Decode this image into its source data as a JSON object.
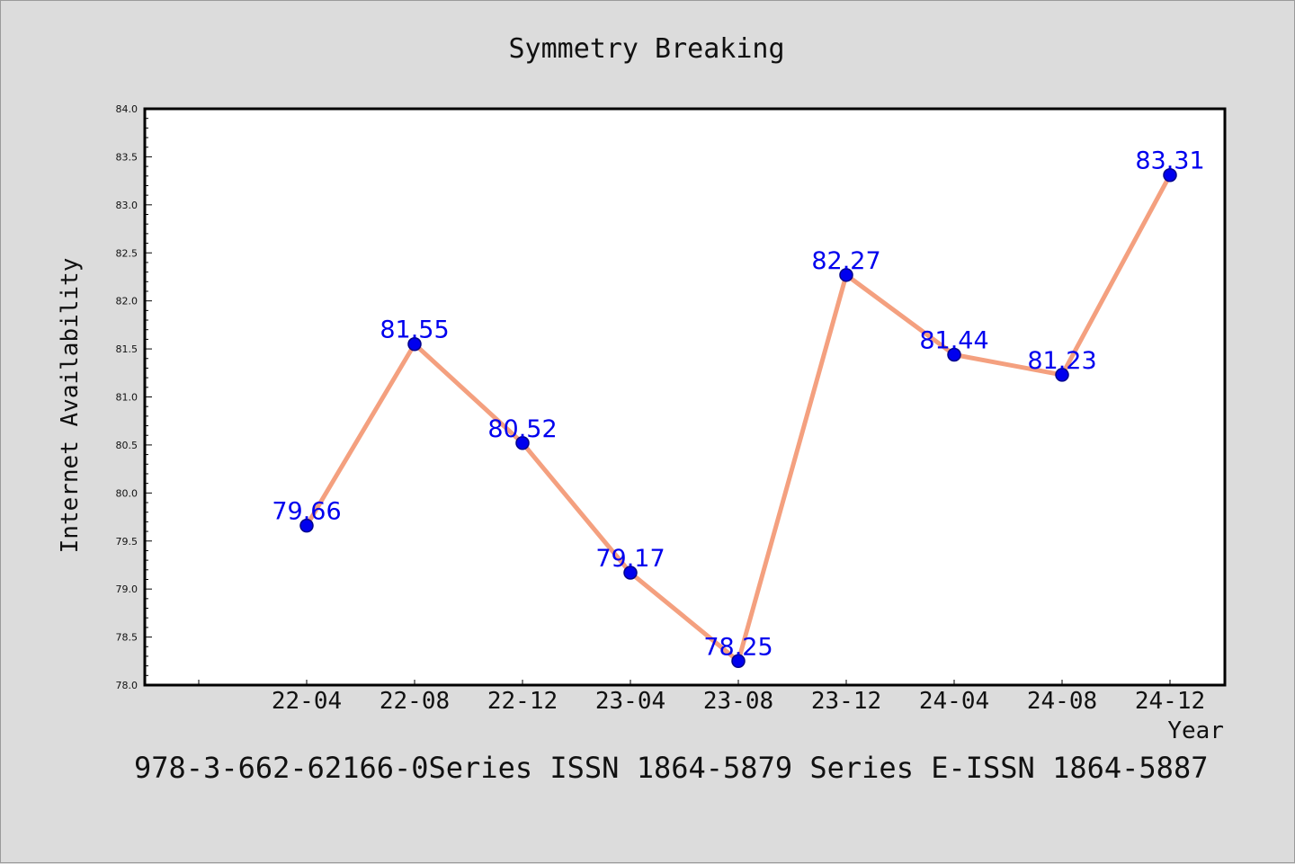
{
  "chart_data": {
    "type": "line",
    "title": "Symmetry Breaking",
    "xlabel": "Year",
    "ylabel": "Internet Availability",
    "categories": [
      "22-04",
      "22-08",
      "22-12",
      "23-04",
      "23-08",
      "23-12",
      "24-04",
      "24-08",
      "24-12"
    ],
    "series": [
      {
        "values": [
          79.66,
          81.55,
          80.52,
          79.17,
          78.25,
          82.27,
          81.44,
          81.23,
          83.31
        ]
      }
    ],
    "data_labels": [
      "79.66",
      "81.55",
      "80.52",
      "79.17",
      "78.25",
      "82.27",
      "81.44",
      "81.23",
      "83.31"
    ],
    "ylim": [
      78.0,
      84.0
    ],
    "yticks": [
      "78.0",
      "78.5",
      "79.0",
      "79.5",
      "80.0",
      "80.5",
      "81.0",
      "81.5",
      "82.0",
      "82.5",
      "83.0",
      "83.5",
      "84.0"
    ],
    "grid": false,
    "colors": {
      "line": "#f4a07f",
      "marker": "#0000ee",
      "marker_edge": "#00008b",
      "data_label": "#0000ee",
      "plot_background": "#ffffff",
      "figure_background": "#dcdcdc"
    }
  },
  "footer": "978-3-662-62166-0Series ISSN 1864-5879 Series E-ISSN 1864-5887"
}
